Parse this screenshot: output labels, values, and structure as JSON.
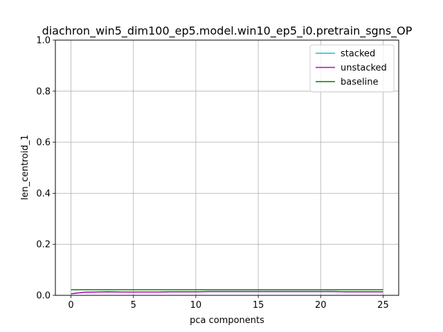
{
  "chart_data": {
    "type": "line",
    "title": "diachron_win5_dim100_ep5.model.win10_ep5_i0.pretrain_sgns_OP",
    "xlabel": "pca components",
    "ylabel": "len_centroid_1",
    "xlim": [
      -1.25,
      26.25
    ],
    "ylim": [
      0,
      1.0
    ],
    "xticks": [
      0,
      5,
      10,
      15,
      20,
      25
    ],
    "yticks": [
      0.0,
      0.2,
      0.4,
      0.6,
      0.8,
      1.0
    ],
    "xtick_labels": [
      "0",
      "5",
      "10",
      "15",
      "20",
      "25"
    ],
    "ytick_labels": [
      "0.0",
      "0.2",
      "0.4",
      "0.6",
      "0.8",
      "1.0"
    ],
    "grid": true,
    "legend_position": "top-right",
    "x": [
      0,
      1,
      2,
      3,
      4,
      5,
      6,
      7,
      8,
      9,
      10,
      11,
      12,
      13,
      14,
      15,
      16,
      17,
      18,
      19,
      20,
      21,
      22,
      23,
      24,
      25
    ],
    "series": [
      {
        "name": "stacked",
        "color": "#17becf",
        "values": [
          0.006,
          0.012,
          0.013,
          0.014,
          0.013,
          0.013,
          0.013,
          0.013,
          0.014,
          0.014,
          0.014,
          0.015,
          0.015,
          0.015,
          0.015,
          0.015,
          0.015,
          0.015,
          0.015,
          0.015,
          0.015,
          0.015,
          0.014,
          0.014,
          0.014,
          0.014
        ]
      },
      {
        "name": "unstacked",
        "color": "#bf00bf",
        "values": [
          0.006,
          0.012,
          0.013,
          0.014,
          0.013,
          0.013,
          0.013,
          0.013,
          0.014,
          0.014,
          0.014,
          0.015,
          0.015,
          0.015,
          0.015,
          0.015,
          0.015,
          0.015,
          0.015,
          0.015,
          0.015,
          0.015,
          0.014,
          0.014,
          0.014,
          0.014
        ]
      },
      {
        "name": "baseline",
        "color": "#008000",
        "values": [
          0.022,
          0.022,
          0.022,
          0.022,
          0.022,
          0.022,
          0.022,
          0.022,
          0.022,
          0.022,
          0.022,
          0.022,
          0.022,
          0.022,
          0.022,
          0.022,
          0.022,
          0.022,
          0.022,
          0.022,
          0.022,
          0.022,
          0.022,
          0.022,
          0.022,
          0.022
        ]
      }
    ]
  }
}
